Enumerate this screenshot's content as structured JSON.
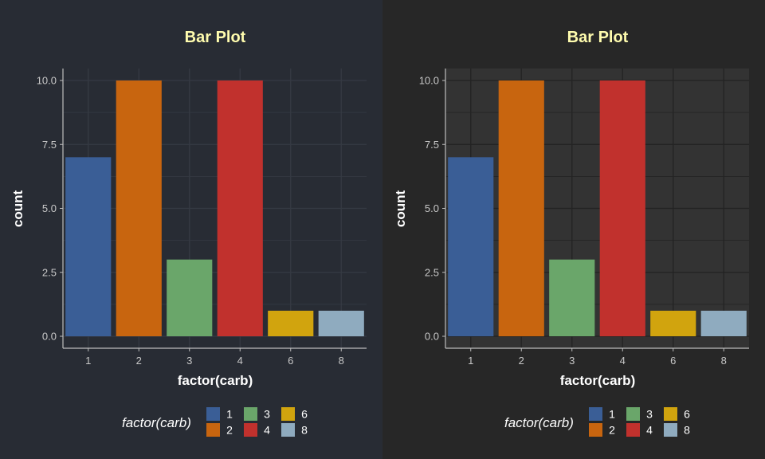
{
  "chart_data": [
    {
      "type": "bar",
      "theme": "dark-blue-grey",
      "title": "Bar Plot",
      "xlabel": "factor(carb)",
      "ylabel": "count",
      "categories": [
        "1",
        "2",
        "3",
        "4",
        "6",
        "8"
      ],
      "values": [
        7,
        10,
        3,
        10,
        1,
        1
      ],
      "ylim": [
        0,
        10
      ],
      "yticks": [
        "0.0",
        "2.5",
        "5.0",
        "7.5",
        "10.0"
      ],
      "grid": true,
      "legend_position": "bottom",
      "legend_title": "factor(carb)",
      "legend_entries": [
        "1",
        "2",
        "3",
        "4",
        "6",
        "8"
      ]
    },
    {
      "type": "bar",
      "theme": "dark-grey",
      "title": "Bar Plot",
      "xlabel": "factor(carb)",
      "ylabel": "count",
      "categories": [
        "1",
        "2",
        "3",
        "4",
        "6",
        "8"
      ],
      "values": [
        7,
        10,
        3,
        10,
        1,
        1
      ],
      "ylim": [
        0,
        10
      ],
      "yticks": [
        "0.0",
        "2.5",
        "5.0",
        "7.5",
        "10.0"
      ],
      "grid": true,
      "legend_position": "bottom",
      "legend_title": "factor(carb)",
      "legend_entries": [
        "1",
        "2",
        "3",
        "4",
        "6",
        "8"
      ]
    }
  ],
  "colors": {
    "bars": [
      "#3a5e96",
      "#c8650f",
      "#6aa66a",
      "#c1312d",
      "#d1a40e",
      "#8fabbf"
    ],
    "title": "#fffcae",
    "left_background": "#282c34",
    "right_background": "#272727",
    "right_plot_panel": "#333333",
    "grid_left": "#353a43",
    "grid_right": "#232323",
    "axis_line": "#bdbdbd"
  }
}
